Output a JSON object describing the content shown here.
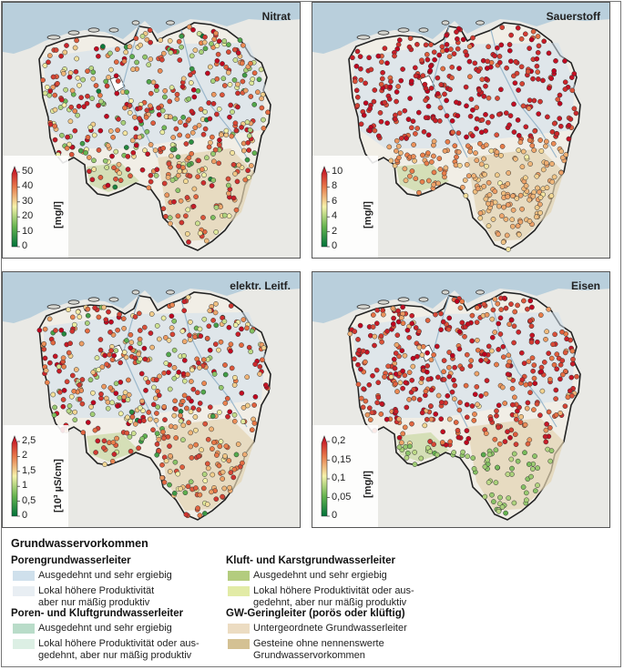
{
  "panels": [
    {
      "title": "Nitrat",
      "unit": "[mg/l]",
      "ticks": [
        "50",
        "40",
        "30",
        "20",
        "10",
        "0"
      ],
      "max": 50,
      "bias": 0.35
    },
    {
      "title": "Sauerstoff",
      "unit": "[mg/l]",
      "ticks": [
        "10",
        "8",
        "6",
        "4",
        "2",
        "0"
      ],
      "max": 10,
      "bias": 0.85
    },
    {
      "title": "elektr. Leitf.",
      "unit": "[10³ µS/cm]",
      "ticks": [
        "2,5",
        "2",
        "1,5",
        "1",
        "0,5",
        "0"
      ],
      "max": 2.5,
      "bias": 0.15
    },
    {
      "title": "Eisen",
      "unit": "[mg/l]",
      "ticks": [
        "0,2",
        "0,15",
        "0,1",
        "0,05",
        "0"
      ],
      "max": 0.2,
      "bias": 0.75
    }
  ],
  "legend": {
    "title": "Grundwasservorkommen",
    "groups": [
      {
        "heading": "Porengrundwasserleiter",
        "items": [
          {
            "text": [
              "Ausgedehnt und sehr ergiebig"
            ],
            "color": "#cfe0ec"
          },
          {
            "text": [
              "Lokal höhere Produktivität",
              "aber nur mäßig produktiv"
            ],
            "color": "#e8eef3"
          }
        ]
      },
      {
        "heading": "Poren- und Kluftgrundwasserleiter",
        "items": [
          {
            "text": [
              "Ausgedehnt und sehr ergiebig"
            ],
            "color": "#b9dcc9"
          },
          {
            "text": [
              "Lokal höhere Produktivität oder aus-",
              "gedehnt, aber nur mäßig produktiv"
            ],
            "color": "#dcefe4"
          }
        ]
      },
      {
        "heading": "Kluft- und Karstgrundwasserleiter",
        "items": [
          {
            "text": [
              "Ausgedehnt und sehr ergiebig"
            ],
            "color": "#b3cc7e"
          },
          {
            "text": [
              "Lokal höhere Produktivität oder aus-",
              "gedehnt, aber nur mäßig produktiv"
            ],
            "color": "#e2eba6"
          }
        ]
      },
      {
        "heading": "GW-Geringleiter (porös oder klüftig)",
        "items": [
          {
            "text": [
              "Untergeordnete Grundwasserleiter"
            ],
            "color": "#ecdcc2"
          },
          {
            "text": [
              "Gesteine ohne nennenswerte",
              "Grundwasservorkommen"
            ],
            "color": "#d4c193"
          }
        ]
      }
    ]
  },
  "colors": {
    "sea": "#b9cfdc",
    "land": "#e9e9e5",
    "border": "#222222"
  }
}
